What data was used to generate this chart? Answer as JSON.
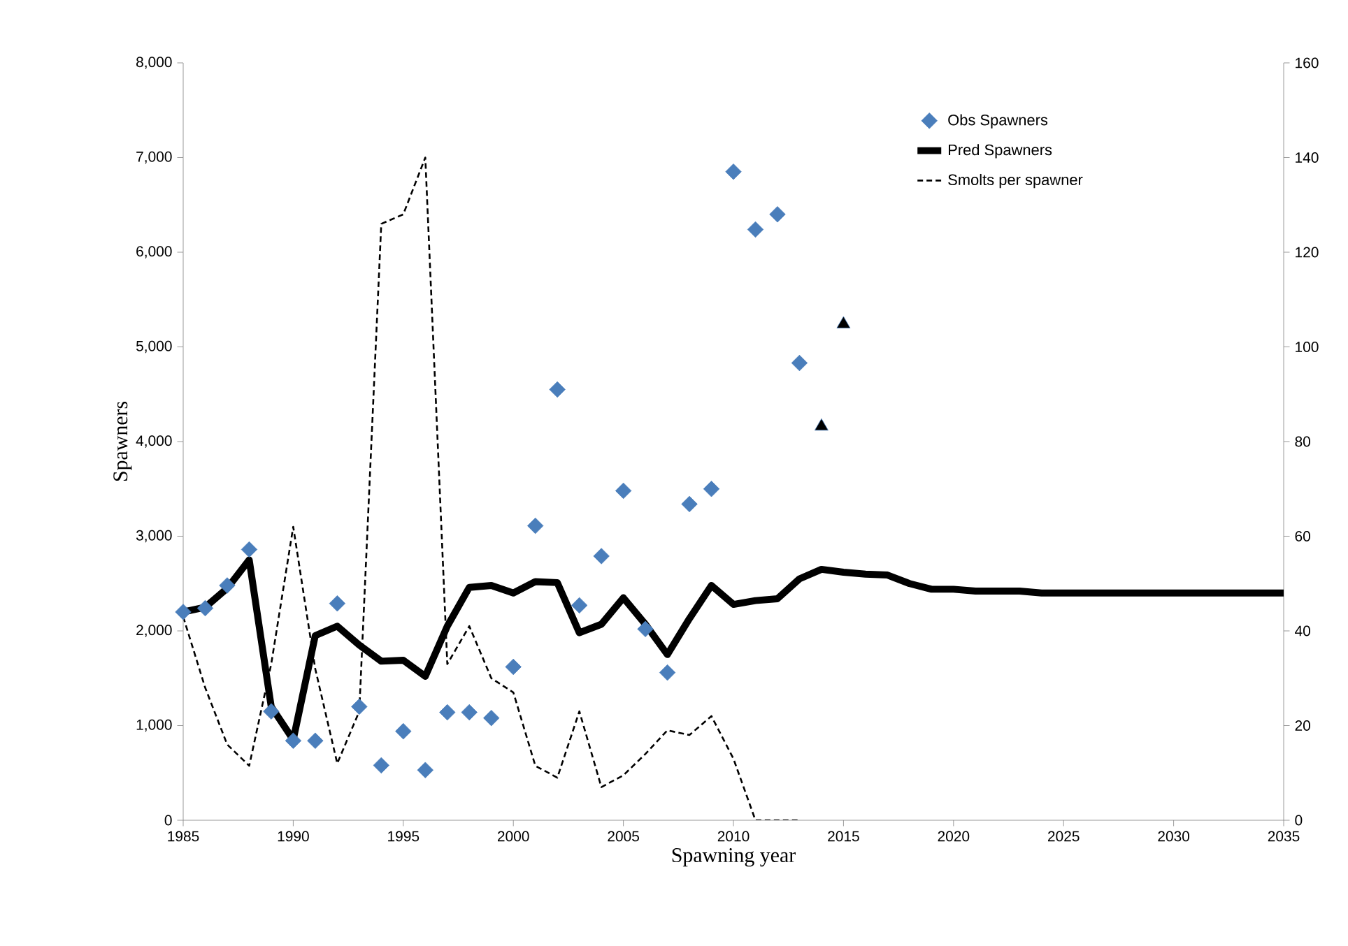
{
  "chart_data": {
    "type": "line",
    "xlabel": "Spawning year",
    "ylabel": "Spawners",
    "xlim": [
      1985,
      2035
    ],
    "xticks": [
      1985,
      1990,
      1995,
      2000,
      2005,
      2010,
      2015,
      2020,
      2025,
      2030,
      2035
    ],
    "ylim": [
      0,
      8000
    ],
    "yticks": [
      0,
      {
        "value": 1000,
        "label": "1,000"
      },
      {
        "value": 2000,
        "label": "2,000"
      },
      {
        "value": 3000,
        "label": "3,000"
      },
      {
        "value": 4000,
        "label": "4,000"
      },
      {
        "value": 5000,
        "label": "5,000"
      },
      {
        "value": 6000,
        "label": "6,000"
      },
      {
        "value": 7000,
        "label": "7,000"
      },
      {
        "value": 8000,
        "label": "8,000"
      }
    ],
    "y2lim": [
      0,
      160
    ],
    "y2ticks": [
      0,
      20,
      40,
      60,
      80,
      100,
      120,
      140,
      160
    ],
    "grid": false,
    "legend": "top right",
    "series": [
      {
        "name": "Obs Spawners",
        "type": "scatter",
        "marker": "diamond",
        "color": "#4a7ebb",
        "x": [
          1985,
          1986,
          1987,
          1988,
          1989,
          1990,
          1991,
          1992,
          1993,
          1994,
          1995,
          1996,
          1997,
          1998,
          1999,
          2000,
          2001,
          2002,
          2003,
          2004,
          2005,
          2006,
          2007,
          2008,
          2009,
          2010,
          2011,
          2012,
          2013
        ],
        "values": [
          2200,
          2240,
          2480,
          2860,
          1150,
          840,
          840,
          2290,
          1200,
          580,
          940,
          530,
          1140,
          1140,
          1080,
          1620,
          3110,
          4550,
          2270,
          2790,
          3480,
          2020,
          1560,
          3340,
          3500,
          6850,
          6240,
          6400,
          4830
        ]
      },
      {
        "type": "scatter",
        "marker": "triangle",
        "color": "#000000",
        "x": [
          2014,
          2015
        ],
        "values": [
          4160,
          5240
        ]
      },
      {
        "name": "Pred Spawners",
        "line_style": "solid",
        "color": "#000000",
        "x": [
          1985,
          1986,
          1987,
          1988,
          1989,
          1990,
          1991,
          1992,
          1993,
          1994,
          1995,
          1996,
          1997,
          1998,
          1999,
          2000,
          2001,
          2002,
          2003,
          2004,
          2005,
          2006,
          2007,
          2008,
          2009,
          2010,
          2011,
          2012,
          2013,
          2014,
          2015,
          2016,
          2017,
          2018,
          2019,
          2020,
          2021,
          2022,
          2023,
          2024,
          2035
        ],
        "values": [
          2200,
          2250,
          2450,
          2750,
          1200,
          850,
          1950,
          2050,
          1850,
          1680,
          1690,
          1520,
          2050,
          2460,
          2480,
          2400,
          2520,
          2510,
          1980,
          2070,
          2350,
          2070,
          1750,
          2130,
          2480,
          2280,
          2320,
          2340,
          2550,
          2650,
          2620,
          2600,
          2590,
          2500,
          2440,
          2440,
          2420,
          2420,
          2420,
          2400,
          2400
        ]
      },
      {
        "name": "Smolts per spawner",
        "axis": "y2",
        "line_style": "dashed",
        "color": "#000000",
        "x": [
          1985,
          1986,
          1987,
          1988,
          1989,
          1990,
          1991,
          1992,
          1993,
          1994,
          1995,
          1996,
          1997,
          1998,
          1999,
          2000,
          2001,
          2002,
          2003,
          2004,
          2005,
          2006,
          2007,
          2008,
          2009,
          2010,
          2011,
          2012,
          2013
        ],
        "values": [
          43,
          28,
          16,
          11.5,
          33,
          62,
          32,
          12,
          23,
          126,
          128,
          140,
          33,
          41,
          30,
          27,
          11.5,
          9,
          23,
          7,
          9.5,
          14,
          19,
          18,
          22,
          13,
          0,
          0,
          0
        ]
      }
    ]
  }
}
